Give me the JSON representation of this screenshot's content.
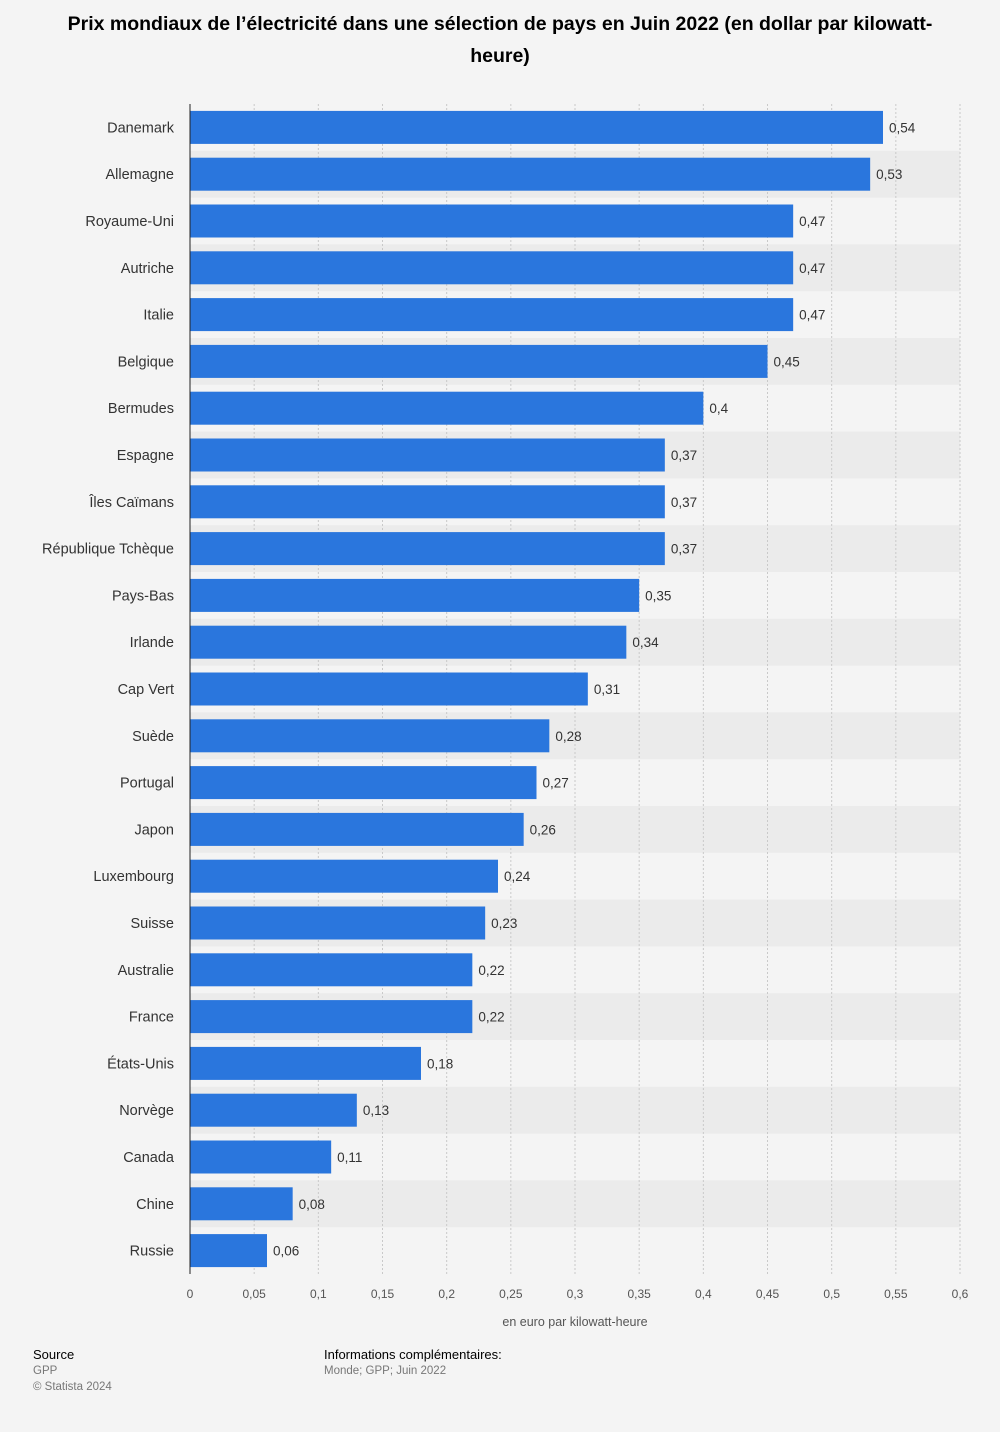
{
  "title": "Prix mondiaux de l’électricité dans une sélection de pays en Juin 2022 (en dollar par kilowatt-heure)",
  "colors": {
    "bar": "#2a76dd",
    "stripe": "#ebebeb",
    "background": "#f4f4f4",
    "grid": "#c9c9c9"
  },
  "chart_data": {
    "type": "bar",
    "orientation": "horizontal",
    "title": "Prix mondiaux de l’électricité dans une sélection de pays en Juin 2022 (en dollar par kilowatt-heure)",
    "xlabel": "en euro par kilowatt-heure",
    "ylabel": "",
    "xlim": [
      0,
      0.6
    ],
    "ticks": [
      "0",
      "0,05",
      "0,1",
      "0,15",
      "0,2",
      "0,25",
      "0,3",
      "0,35",
      "0,4",
      "0,45",
      "0,5",
      "0,55",
      "0,6"
    ],
    "categories": [
      "Danemark",
      "Allemagne",
      "Royaume-Uni",
      "Autriche",
      "Italie",
      "Belgique",
      "Bermudes",
      "Espagne",
      "Îles Caïmans",
      "République Tchèque",
      "Pays-Bas",
      "Irlande",
      "Cap Vert",
      "Suède",
      "Portugal",
      "Japon",
      "Luxembourg",
      "Suisse",
      "Australie",
      "France",
      "États-Unis",
      "Norvège",
      "Canada",
      "Chine",
      "Russie"
    ],
    "values": [
      0.54,
      0.53,
      0.47,
      0.47,
      0.47,
      0.45,
      0.4,
      0.37,
      0.37,
      0.37,
      0.35,
      0.34,
      0.31,
      0.28,
      0.27,
      0.26,
      0.24,
      0.23,
      0.22,
      0.22,
      0.18,
      0.13,
      0.11,
      0.08,
      0.06
    ],
    "value_labels": [
      "0,54",
      "0,53",
      "0,47",
      "0,47",
      "0,47",
      "0,45",
      "0,4",
      "0,37",
      "0,37",
      "0,37",
      "0,35",
      "0,34",
      "0,31",
      "0,28",
      "0,27",
      "0,26",
      "0,24",
      "0,23",
      "0,22",
      "0,22",
      "0,18",
      "0,13",
      "0,11",
      "0,08",
      "0,06"
    ],
    "grid": true
  },
  "footer": {
    "source_label": "Source",
    "source": "GPP",
    "copyright": "© Statista 2024",
    "info_label": "Informations complémentaires:",
    "info": "Monde; GPP; Juin 2022"
  }
}
